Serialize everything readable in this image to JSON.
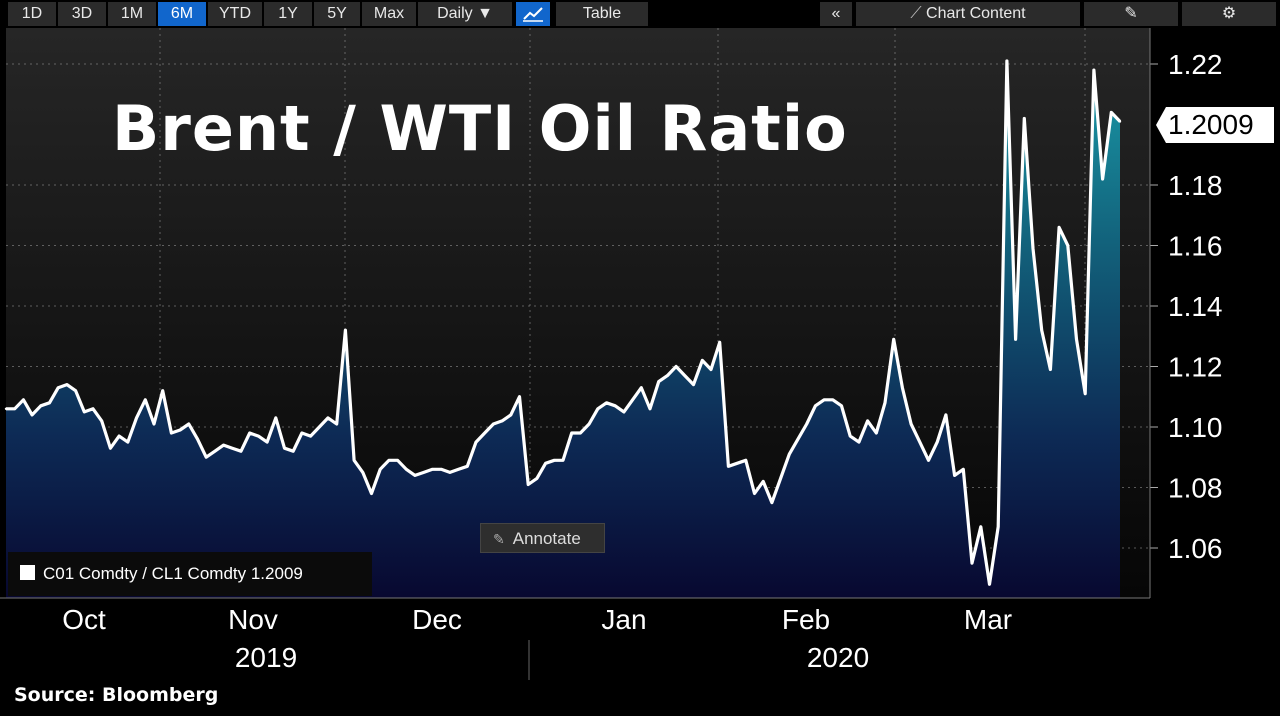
{
  "toolbar": {
    "ranges": [
      "1D",
      "3D",
      "1M",
      "6M",
      "YTD",
      "1Y",
      "5Y",
      "Max"
    ],
    "active_range": "6M",
    "frequency": "Daily ▼",
    "table_label": "Table",
    "collapse_icon": "«",
    "chart_content_label": "Chart Content",
    "edit_icon": "edit-icon",
    "settings_icon": "gear-icon"
  },
  "annotate_label": "Annotate",
  "source": "Source: Bloomberg",
  "legend_text": "C01 Comdty / CL1 Comdty  1.2009",
  "last_value_label": "1.2009",
  "colors": {
    "line": "#ffffff",
    "fill_top": "#1a8fa0",
    "fill_bottom": "#0a0a30",
    "active": "#1166cc"
  },
  "chart_data": {
    "type": "area",
    "title": "Brent / WTI Oil Ratio",
    "series": [
      {
        "name": "C01 Comdty / CL1 Comdty",
        "values": [
          1.106,
          1.106,
          1.109,
          1.104,
          1.107,
          1.108,
          1.113,
          1.114,
          1.112,
          1.105,
          1.106,
          1.102,
          1.093,
          1.097,
          1.095,
          1.103,
          1.109,
          1.101,
          1.112,
          1.098,
          1.099,
          1.101,
          1.096,
          1.09,
          1.092,
          1.094,
          1.093,
          1.092,
          1.098,
          1.097,
          1.095,
          1.103,
          1.093,
          1.092,
          1.098,
          1.097,
          1.1,
          1.103,
          1.101,
          1.132,
          1.089,
          1.085,
          1.078,
          1.086,
          1.089,
          1.089,
          1.086,
          1.084,
          1.085,
          1.086,
          1.086,
          1.085,
          1.086,
          1.087,
          1.095,
          1.098,
          1.101,
          1.102,
          1.104,
          1.11,
          1.081,
          1.083,
          1.088,
          1.089,
          1.089,
          1.098,
          1.098,
          1.101,
          1.106,
          1.108,
          1.107,
          1.105,
          1.109,
          1.113,
          1.106,
          1.115,
          1.117,
          1.12,
          1.117,
          1.114,
          1.122,
          1.119,
          1.128,
          1.087,
          1.088,
          1.089,
          1.078,
          1.082,
          1.075,
          1.083,
          1.091,
          1.096,
          1.101,
          1.107,
          1.109,
          1.109,
          1.107,
          1.097,
          1.095,
          1.102,
          1.098,
          1.108,
          1.129,
          1.113,
          1.101,
          1.095,
          1.089,
          1.095,
          1.104,
          1.084,
          1.086,
          1.055,
          1.067,
          1.048,
          1.067,
          1.221,
          1.129,
          1.202,
          1.159,
          1.132,
          1.119,
          1.166,
          1.16,
          1.129,
          1.111,
          1.218,
          1.182,
          1.204,
          1.201
        ]
      }
    ],
    "x_month_labels": [
      "Oct",
      "Nov",
      "Dec",
      "Jan",
      "Feb",
      "Mar"
    ],
    "x_year_labels": [
      "2019",
      "2020"
    ],
    "y_ticks": [
      "1.06",
      "1.08",
      "1.10",
      "1.12",
      "1.14",
      "1.16",
      "1.18",
      "1.22"
    ],
    "ylim": [
      1.045,
      1.232
    ],
    "last_value": 1.2009,
    "grid": true
  }
}
